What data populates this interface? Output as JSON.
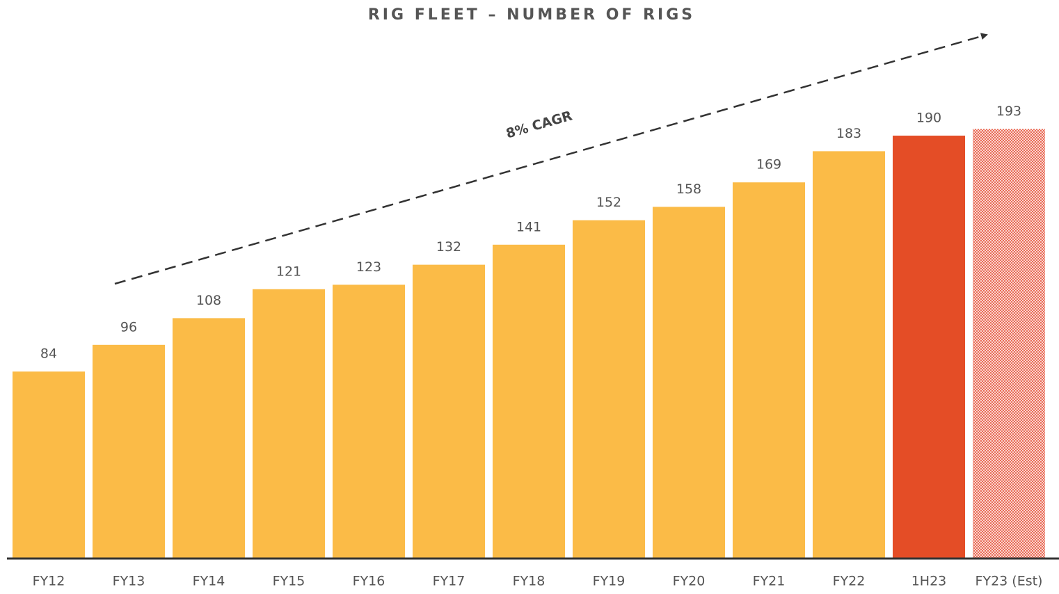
{
  "chart_data": {
    "type": "bar",
    "title": "RIG FLEET – NUMBER OF RIGS",
    "annotation": "8% CAGR",
    "categories": [
      "FY12",
      "FY13",
      "FY14",
      "FY15",
      "FY16",
      "FY17",
      "FY18",
      "FY19",
      "FY20",
      "FY21",
      "FY22",
      "1H23",
      "FY23 (Est)"
    ],
    "values": [
      84,
      96,
      108,
      121,
      123,
      132,
      141,
      152,
      158,
      169,
      183,
      190,
      193
    ],
    "colors": [
      "#fbbb47",
      "#fbbb47",
      "#fbbb47",
      "#fbbb47",
      "#fbbb47",
      "#fbbb47",
      "#fbbb47",
      "#fbbb47",
      "#fbbb47",
      "#fbbb47",
      "#fbbb47",
      "#e44d26",
      "#e44d26"
    ],
    "hatched": [
      12
    ],
    "ylim": [
      0,
      200
    ]
  }
}
